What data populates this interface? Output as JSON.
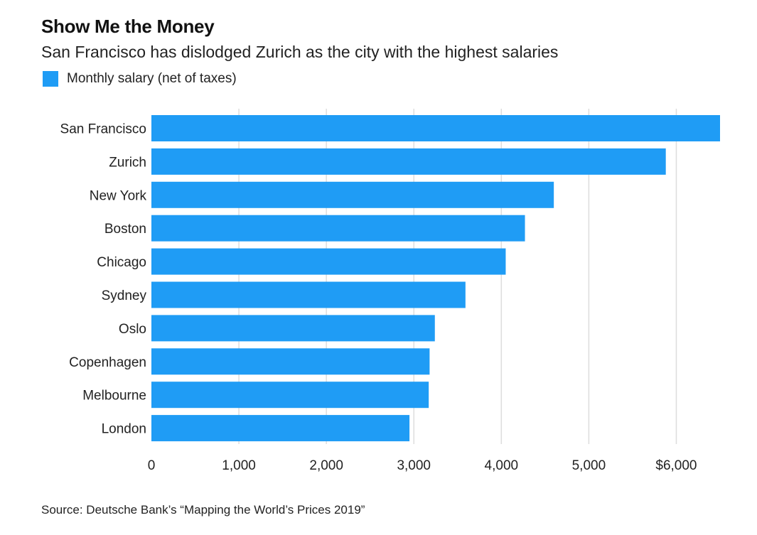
{
  "title": "Show Me the Money",
  "subtitle": "San Francisco has dislodged Zurich as the city with the highest salaries",
  "legend": {
    "label": "Monthly salary (net of taxes)",
    "color": "#1f9cf5"
  },
  "source": "Source: Deutsche Bank’s “Mapping the World’s Prices 2019”",
  "chart_data": {
    "type": "bar",
    "orientation": "horizontal",
    "categories": [
      "San Francisco",
      "Zurich",
      "New York",
      "Boston",
      "Chicago",
      "Sydney",
      "Oslo",
      "Copenhagen",
      "Melbourne",
      "London"
    ],
    "series": [
      {
        "name": "Monthly salary (net of taxes)",
        "values": [
          6500,
          5880,
          4600,
          4270,
          4050,
          3590,
          3240,
          3180,
          3170,
          2950
        ]
      }
    ],
    "xlim": [
      0,
      6500
    ],
    "xticks": [
      0,
      1000,
      2000,
      3000,
      4000,
      5000,
      6000
    ],
    "xtick_labels": [
      "0",
      "1,000",
      "2,000",
      "3,000",
      "4,000",
      "5,000",
      "$6,000"
    ],
    "grid": true,
    "legend_position": "top-left",
    "bar_color": "#1f9cf5",
    "grid_color": "#dddddd"
  }
}
